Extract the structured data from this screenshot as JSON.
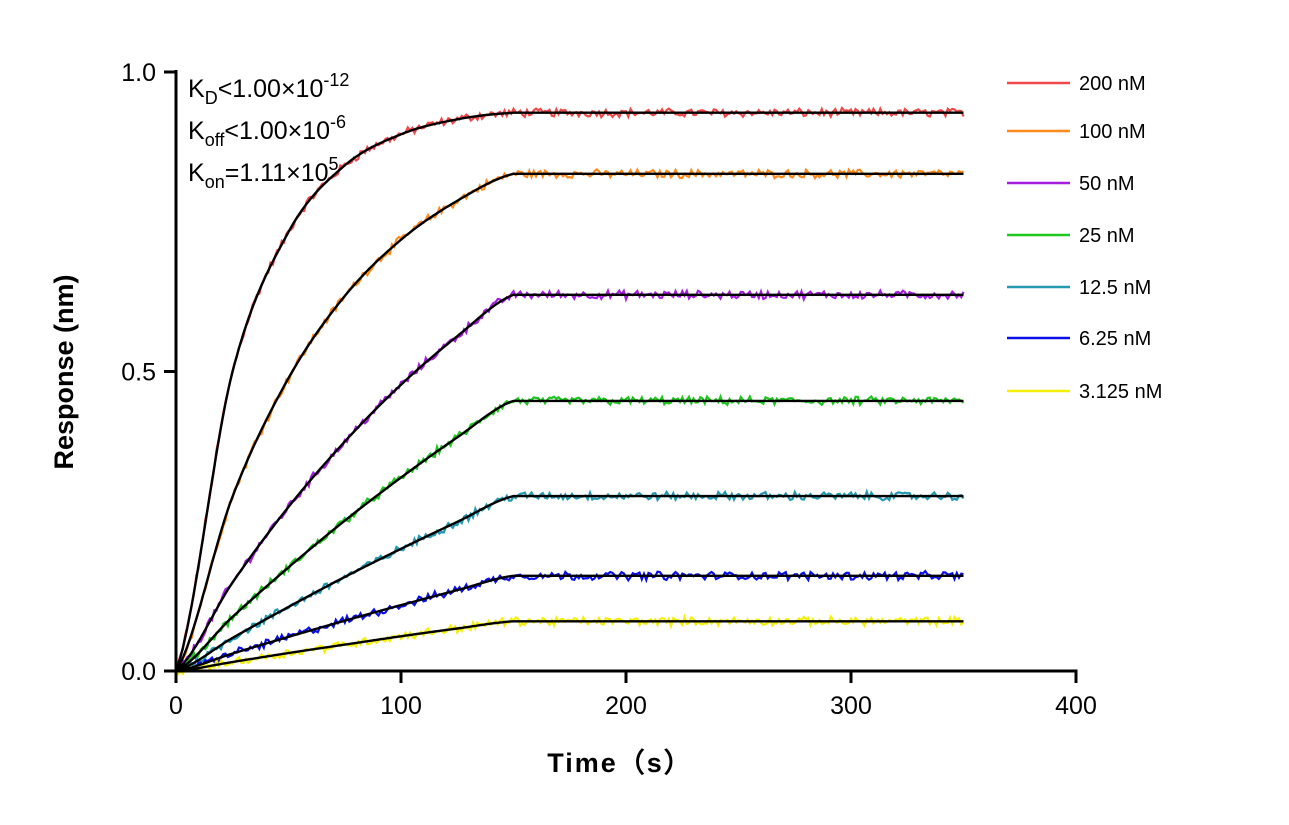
{
  "chart_data": {
    "type": "line",
    "xlabel": "Time（s）",
    "ylabel": "Response (nm)",
    "xlim": [
      0,
      400
    ],
    "ylim": [
      0,
      1.0
    ],
    "xticks": [
      "0",
      "100",
      "200",
      "300",
      "400"
    ],
    "yticks": [
      "0.0",
      "0.5",
      "1.0"
    ],
    "xtick_values": [
      0,
      100,
      200,
      300,
      400
    ],
    "ytick_values": [
      0,
      0.5,
      1.0
    ],
    "grid": false,
    "legend_placement": "right",
    "annotations": [
      {
        "main": "K",
        "sub": "D",
        "rest": "<1.00×10",
        "sup": "-12"
      },
      {
        "main": "K",
        "sub": "off",
        "rest": "<1.00×10",
        "sup": "-6"
      },
      {
        "main": "K",
        "sub": "on",
        "rest": "=1.11×10",
        "sup": "5"
      }
    ],
    "fit_color": "#000000",
    "x": [
      0,
      25,
      50,
      75,
      100,
      125,
      150,
      350
    ],
    "series": [
      {
        "name": "200 nM",
        "color": "#f04848",
        "values": [
          0,
          0.498,
          0.733,
          0.844,
          0.896,
          0.921,
          0.932,
          0.932
        ]
      },
      {
        "name": "100 nM",
        "color": "#ff8a1c",
        "values": [
          0,
          0.29,
          0.489,
          0.626,
          0.72,
          0.785,
          0.83,
          0.83
        ]
      },
      {
        "name": "50 nM",
        "color": "#a51ee0",
        "values": [
          0,
          0.147,
          0.274,
          0.383,
          0.478,
          0.559,
          0.628,
          0.628
        ]
      },
      {
        "name": "25 nM",
        "color": "#1ec81e",
        "values": [
          0,
          0.09,
          0.173,
          0.251,
          0.323,
          0.39,
          0.451,
          0.451
        ]
      },
      {
        "name": "12.5 nM",
        "color": "#2399b2",
        "values": [
          0,
          0.055,
          0.107,
          0.157,
          0.204,
          0.249,
          0.292,
          0.292
        ]
      },
      {
        "name": "6.25 nM",
        "color": "#0a10e6",
        "values": [
          0,
          0.029,
          0.057,
          0.084,
          0.11,
          0.135,
          0.159,
          0.159
        ]
      },
      {
        "name": "3.125 nM",
        "color": "#f5f00a",
        "values": [
          0,
          0.015,
          0.03,
          0.044,
          0.058,
          0.071,
          0.083,
          0.083
        ]
      }
    ]
  }
}
